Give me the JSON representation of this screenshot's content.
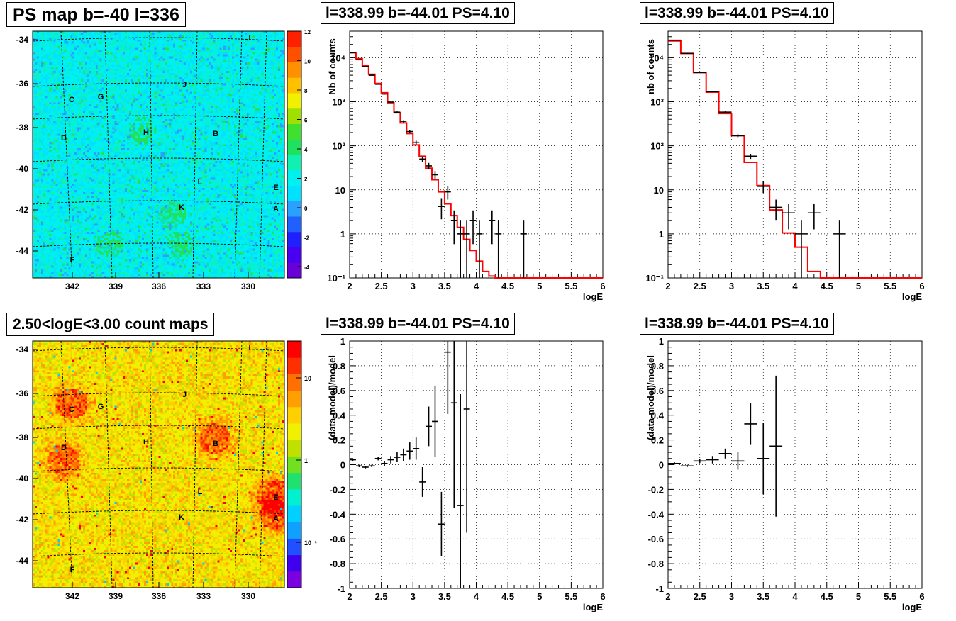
{
  "panels": {
    "ps_map": {
      "title": "PS map b=-40 l=336",
      "y_ticks": [
        "-34",
        "-36",
        "-38",
        "-40",
        "-42",
        "-44"
      ],
      "x_ticks": [
        "342",
        "339",
        "336",
        "333",
        "330"
      ],
      "colorbar_ticks": [
        "12",
        "10",
        "8",
        "6",
        "4",
        "2",
        "0",
        "-2",
        "-4"
      ],
      "sources": [
        "I",
        "J",
        "C",
        "G",
        "D",
        "H",
        "B",
        "L",
        "E",
        "K",
        "A",
        "F"
      ]
    },
    "count_map": {
      "title": "2.50<logE<3.00 count maps",
      "y_ticks": [
        "-34",
        "-36",
        "-38",
        "-40",
        "-42",
        "-44"
      ],
      "x_ticks": [
        "342",
        "339",
        "336",
        "333",
        "330"
      ],
      "colorbar_ticks": [
        "10",
        "1",
        "10⁻¹"
      ],
      "sources": [
        "I",
        "J",
        "C",
        "G",
        "D",
        "H",
        "B",
        "L",
        "E",
        "K",
        "A",
        "F"
      ]
    },
    "spectrum_1": {
      "title": "l=338.99 b=-44.01 PS=4.10",
      "ylabel": "Nb of counts",
      "xlabel": "logE",
      "x_ticks": [
        "2",
        "2.5",
        "3",
        "3.5",
        "4",
        "4.5",
        "5",
        "5.5",
        "6"
      ],
      "y_ticks": [
        "10⁻¹",
        "1",
        "10",
        "10²",
        "10³",
        "10⁴"
      ]
    },
    "spectrum_2": {
      "title": "l=338.99 b=-44.01 PS=4.10",
      "ylabel": "nb of counts",
      "xlabel": "logE",
      "x_ticks": [
        "2",
        "2.5",
        "3",
        "3.5",
        "4",
        "4.5",
        "5",
        "5.5",
        "6"
      ],
      "y_ticks": [
        "10⁻¹",
        "1",
        "10",
        "10²",
        "10³",
        "10⁴"
      ]
    },
    "residual_1": {
      "title": "l=338.99 b=-44.01 PS=4.10",
      "ylabel": "(data-model)/model",
      "xlabel": "logE",
      "x_ticks": [
        "2",
        "2.5",
        "3",
        "3.5",
        "4",
        "4.5",
        "5",
        "5.5",
        "6"
      ],
      "y_ticks": [
        "1",
        "0.8",
        "0.6",
        "0.4",
        "0.2",
        "0",
        "-0.2",
        "-0.4",
        "-0.6",
        "-0.8",
        "-1"
      ]
    },
    "residual_2": {
      "title": "l=338.99 b=-44.01 PS=4.10",
      "ylabel": "(data-model)/model",
      "xlabel": "logE",
      "x_ticks": [
        "2",
        "2.5",
        "3",
        "3.5",
        "4",
        "4.5",
        "5",
        "5.5",
        "6"
      ],
      "y_ticks": [
        "1",
        "0.8",
        "0.6",
        "0.4",
        "0.2",
        "0",
        "-0.2",
        "-0.4",
        "-0.6",
        "-0.8",
        "-1"
      ]
    }
  },
  "colors": {
    "model_line": "#ff0000",
    "data_points": "#000000",
    "grid": "#000000"
  },
  "chart_data": [
    {
      "type": "heatmap",
      "title": "PS map b=-40 l=336",
      "x_axis_ticks": [
        342,
        339,
        336,
        333,
        330
      ],
      "y_axis_ticks": [
        -34,
        -36,
        -38,
        -40,
        -42,
        -44
      ],
      "ylim": [
        -45.8,
        -33.7
      ],
      "z_range": [
        -5,
        12
      ],
      "sources": [
        {
          "label": "I",
          "l": 330,
          "b": -34.2
        },
        {
          "label": "J",
          "l": 334.6,
          "b": -36.3
        },
        {
          "label": "C",
          "l": 342.2,
          "b": -37.1
        },
        {
          "label": "G",
          "l": 340.9,
          "b": -36.9
        },
        {
          "label": "D",
          "l": 342.7,
          "b": -39.1
        },
        {
          "label": "H",
          "l": 337.1,
          "b": -38.8
        },
        {
          "label": "B",
          "l": 332.2,
          "b": -38.9
        },
        {
          "label": "L",
          "l": 333.8,
          "b": -41.2
        },
        {
          "label": "E",
          "l": 328.5,
          "b": -41.5
        },
        {
          "label": "K",
          "l": 334.9,
          "b": -42.5
        },
        {
          "label": "A",
          "l": 328.6,
          "b": -42.4
        },
        {
          "label": "F",
          "l": 342.1,
          "b": -45.0
        }
      ]
    },
    {
      "type": "heatmap",
      "title": "2.50<logE<3.00 count maps",
      "x_axis_ticks": [
        342,
        339,
        336,
        333,
        330
      ],
      "y_axis_ticks": [
        -34,
        -36,
        -38,
        -40,
        -42,
        -44
      ],
      "z_scale": "log",
      "z_ticks": [
        10,
        1,
        0.1
      ],
      "hotspots": [
        "C",
        "D",
        "B",
        "E",
        "A"
      ]
    },
    {
      "type": "line",
      "title": "l=338.99 b=-44.01 PS=4.10",
      "xlabel": "logE",
      "ylabel": "Nb of counts",
      "xlim": [
        2,
        6
      ],
      "ylim": [
        0.1,
        40000
      ],
      "yscale": "log",
      "grid": true,
      "series": [
        {
          "style": "step",
          "edges": [
            2,
            2.1,
            2.2,
            2.3,
            2.4,
            2.5,
            2.6,
            2.7,
            2.8,
            2.9,
            3.0,
            3.1,
            3.2,
            3.3,
            3.4,
            3.5,
            3.6,
            3.7,
            3.8,
            3.9,
            4.0,
            4.1,
            4.2,
            4.3,
            6.0
          ],
          "values": [
            13000,
            9500,
            6500,
            4200,
            2600,
            1600,
            950,
            560,
            330,
            190,
            105,
            58,
            31,
            17,
            9,
            4.8,
            2.6,
            1.4,
            0.75,
            0.42,
            0.24,
            0.14,
            0.11,
            0.1
          ]
        },
        {
          "style": "errorbar",
          "x": [
            2.05,
            2.15,
            2.25,
            2.35,
            2.45,
            2.55,
            2.65,
            2.75,
            2.85,
            2.95,
            3.05,
            3.15,
            3.25,
            3.35,
            3.45,
            3.55,
            3.65,
            3.75,
            3.85,
            3.95,
            4.05,
            4.25,
            4.35,
            4.75
          ],
          "y": [
            13000,
            9000,
            6300,
            4000,
            2500,
            1500,
            980,
            580,
            360,
            210,
            120,
            50,
            35,
            22,
            4.2,
            9,
            2,
            1,
            1,
            2,
            1,
            2,
            1,
            1
          ],
          "xerr": [
            0.05,
            0.05,
            0.05,
            0.05,
            0.05,
            0.05,
            0.05,
            0.05,
            0.05,
            0.05,
            0.05,
            0.05,
            0.05,
            0.05,
            0.05,
            0.05,
            0.05,
            0.05,
            0.05,
            0.05,
            0.05,
            0.05,
            0.05,
            0.05
          ]
        }
      ]
    },
    {
      "type": "line",
      "title": "l=338.99 b=-44.01 PS=4.10",
      "xlabel": "logE",
      "ylabel": "nb of counts",
      "xlim": [
        2,
        6
      ],
      "ylim": [
        0.1,
        40000
      ],
      "yscale": "log",
      "grid": true,
      "series": [
        {
          "style": "step",
          "edges": [
            2,
            2.2,
            2.4,
            2.6,
            2.8,
            3.0,
            3.2,
            3.4,
            3.6,
            3.8,
            4.0,
            4.2,
            4.4,
            6.0
          ],
          "values": [
            24000,
            12500,
            4600,
            1650,
            540,
            170,
            42,
            12.5,
            3.5,
            1.05,
            0.5,
            0.14,
            0.1
          ]
        },
        {
          "style": "errorbar",
          "x": [
            2.1,
            2.3,
            2.5,
            2.7,
            2.9,
            3.1,
            3.3,
            3.5,
            3.7,
            3.9,
            4.1,
            4.3,
            4.7
          ],
          "y": [
            25000,
            12500,
            4600,
            1700,
            580,
            170,
            58,
            12,
            4,
            3,
            1,
            3,
            1
          ],
          "xerr": [
            0.1,
            0.1,
            0.1,
            0.1,
            0.1,
            0.1,
            0.1,
            0.1,
            0.1,
            0.1,
            0.1,
            0.1,
            0.1
          ]
        }
      ]
    },
    {
      "type": "scatter",
      "title": "l=338.99 b=-44.01 PS=4.10",
      "xlabel": "logE",
      "ylabel": "(data-model)/model",
      "xlim": [
        2,
        6
      ],
      "ylim": [
        -1,
        1
      ],
      "grid": true,
      "series": [
        {
          "style": "errorbar",
          "x": [
            2.05,
            2.15,
            2.25,
            2.35,
            2.45,
            2.55,
            2.65,
            2.75,
            2.85,
            2.95,
            3.05,
            3.15,
            3.25,
            3.35,
            3.45,
            3.55,
            3.65,
            3.75,
            3.85
          ],
          "y": [
            0.04,
            -0.01,
            -0.02,
            -0.01,
            0.05,
            0.01,
            0.04,
            0.06,
            0.08,
            0.11,
            0.13,
            -0.14,
            0.31,
            0.35,
            -0.48,
            0.91,
            0.5,
            -0.33,
            0.45
          ],
          "yerr": [
            0.01,
            0.01,
            0.01,
            0.01,
            0.015,
            0.02,
            0.03,
            0.04,
            0.05,
            0.07,
            0.09,
            0.12,
            0.16,
            0.29,
            0.26,
            0.5,
            0.85,
            0.9,
            1.0
          ],
          "xerr": [
            0.05,
            0.05,
            0.05,
            0.05,
            0.05,
            0.05,
            0.05,
            0.05,
            0.05,
            0.05,
            0.05,
            0.05,
            0.05,
            0.05,
            0.05,
            0.05,
            0.05,
            0.05,
            0.05
          ]
        }
      ]
    },
    {
      "type": "scatter",
      "title": "l=338.99 b=-44.01 PS=4.10",
      "xlabel": "logE",
      "ylabel": "(data-model)/model",
      "xlim": [
        2,
        6
      ],
      "ylim": [
        -1,
        1
      ],
      "grid": true,
      "series": [
        {
          "style": "errorbar",
          "x": [
            2.1,
            2.3,
            2.5,
            2.7,
            2.9,
            3.1,
            3.3,
            3.5,
            3.7
          ],
          "y": [
            0.01,
            -0.01,
            0.03,
            0.04,
            0.09,
            0.03,
            0.33,
            0.05,
            0.15
          ],
          "yerr": [
            0.01,
            0.01,
            0.015,
            0.03,
            0.04,
            0.07,
            0.17,
            0.29,
            0.57
          ],
          "xerr": [
            0.1,
            0.1,
            0.1,
            0.1,
            0.1,
            0.1,
            0.1,
            0.1,
            0.1
          ]
        }
      ]
    }
  ]
}
